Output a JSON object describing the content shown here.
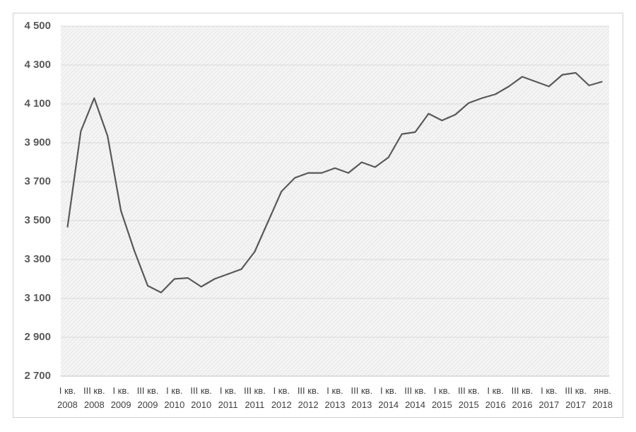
{
  "chart_data": {
    "type": "line",
    "categories": [
      "I кв.\n2008",
      null,
      "III кв.\n2008",
      null,
      "I кв.\n2009",
      null,
      "III кв.\n2009",
      null,
      "I кв.\n2010",
      null,
      "III кв.\n2010",
      null,
      "I кв.\n2011",
      null,
      "III кв.\n2011",
      null,
      "I кв.\n2012",
      null,
      "III кв.\n2012",
      null,
      "I кв.\n2013",
      null,
      "III кв.\n2013",
      null,
      "I кв.\n2014",
      null,
      "III кв.\n2014",
      null,
      "I кв.\n2015",
      null,
      "III кв.\n2015",
      null,
      "I кв.\n2016",
      null,
      "III кв.\n2016",
      null,
      "I кв.\n2017",
      null,
      "III кв.\n2017",
      null,
      "янв.\n2018"
    ],
    "values": [
      3465,
      3960,
      4130,
      3935,
      3550,
      3345,
      3165,
      3130,
      3200,
      3205,
      3160,
      3200,
      3225,
      3250,
      3340,
      3495,
      3650,
      3720,
      3745,
      3745,
      3770,
      3745,
      3800,
      3775,
      3825,
      3945,
      3955,
      4050,
      4015,
      4045,
      4105,
      4130,
      4150,
      4190,
      4240,
      4215,
      4190,
      4250,
      4260,
      4195,
      4215
    ],
    "color": "#595959",
    "ylim": [
      2700,
      4500
    ],
    "yticks": [
      {
        "value": 2700,
        "label": "2 700"
      },
      {
        "value": 2900,
        "label": "2 900"
      },
      {
        "value": 3100,
        "label": "3 100"
      },
      {
        "value": 3300,
        "label": "3 300"
      },
      {
        "value": 3500,
        "label": "3 500"
      },
      {
        "value": 3700,
        "label": "3 700"
      },
      {
        "value": 3900,
        "label": "3 900"
      },
      {
        "value": 4100,
        "label": "4 100"
      },
      {
        "value": 4300,
        "label": "4 300"
      },
      {
        "value": 4500,
        "label": "4 500"
      }
    ],
    "grid": true
  }
}
